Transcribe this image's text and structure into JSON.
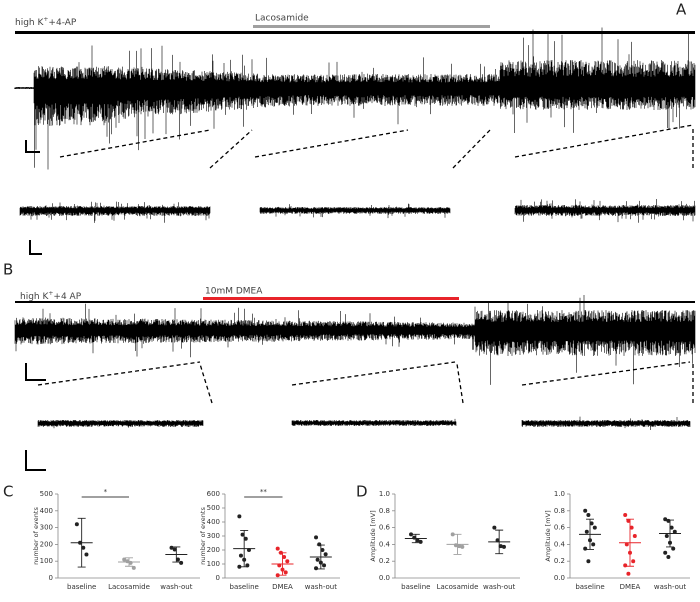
{
  "panels": [
    "A",
    "B",
    "C",
    "D"
  ],
  "traces": [
    {
      "condition": {
        "prefix": "high K",
        "sup": "+",
        "suffix": "+4-AP"
      },
      "drug": "Lacosamide",
      "drug_color": "#a0a0a0"
    },
    {
      "condition": {
        "prefix": "high K",
        "sup": "+",
        "suffix": "+4 AP"
      },
      "drug": "10mM DMEA",
      "drug_color": "#e8242a"
    }
  ],
  "chart_data": [
    {
      "type": "dotplot",
      "ylabel": "number of events",
      "categories": [
        "baseline",
        "Lacosamide",
        "wash-out"
      ],
      "colors": [
        "#222222",
        "#a0a0a0",
        "#222222"
      ],
      "points": [
        [
          320,
          210,
          180,
          140
        ],
        [
          110,
          100,
          90,
          60
        ],
        [
          180,
          170,
          110,
          90
        ]
      ],
      "means": [
        210,
        95,
        140
      ],
      "errors": [
        145,
        25,
        45
      ],
      "ylim": [
        0,
        500
      ],
      "yticks": [
        0,
        100,
        200,
        300,
        400,
        500
      ],
      "significance": "*"
    },
    {
      "type": "dotplot",
      "ylabel": "number of events",
      "categories": [
        "baseline",
        "DMEA",
        "wash-out"
      ],
      "colors": [
        "#222222",
        "#e8242a",
        "#222222"
      ],
      "points": [
        [
          440,
          310,
          280,
          200,
          160,
          130,
          90,
          80
        ],
        [
          210,
          180,
          150,
          120,
          90,
          60,
          40,
          20
        ],
        [
          290,
          240,
          200,
          170,
          130,
          110,
          90,
          70
        ]
      ],
      "means": [
        210,
        100,
        150
      ],
      "errors": [
        130,
        80,
        85
      ],
      "ylim": [
        0,
        600
      ],
      "yticks": [
        0,
        100,
        200,
        300,
        400,
        500,
        600
      ],
      "significance": "**"
    },
    {
      "type": "dotplot",
      "ylabel": "Amplitude [mV]",
      "categories": [
        "baseline",
        "Lacosamide",
        "wash-out"
      ],
      "colors": [
        "#222222",
        "#a0a0a0",
        "#222222"
      ],
      "points": [
        [
          0.52,
          0.48,
          0.45,
          0.43
        ],
        [
          0.52,
          0.39,
          0.38,
          0.37
        ],
        [
          0.6,
          0.45,
          0.38,
          0.37
        ]
      ],
      "means": [
        0.47,
        0.4,
        0.43
      ],
      "errors": [
        0.05,
        0.12,
        0.14
      ],
      "ylim": [
        0,
        1
      ],
      "yticks": [
        {
          "value": 0,
          "label": "0.0"
        },
        0.2,
        0.4,
        0.6,
        0.8,
        {
          "value": 1,
          "label": "1.0"
        }
      ]
    },
    {
      "type": "dotplot",
      "ylabel": "Amplitude [mV]",
      "categories": [
        "baseline",
        "DMEA",
        "wash-out"
      ],
      "colors": [
        "#222222",
        "#e8242a",
        "#222222"
      ],
      "points": [
        [
          0.8,
          0.75,
          0.65,
          0.6,
          0.55,
          0.45,
          0.4,
          0.35,
          0.2
        ],
        [
          0.75,
          0.68,
          0.6,
          0.5,
          0.4,
          0.3,
          0.2,
          0.15,
          0.05
        ],
        [
          0.7,
          0.68,
          0.6,
          0.55,
          0.5,
          0.42,
          0.35,
          0.3,
          0.25
        ]
      ],
      "means": [
        0.52,
        0.42,
        0.53
      ],
      "errors": [
        0.18,
        0.28,
        0.16
      ],
      "ylim": [
        0,
        1
      ],
      "yticks": [
        {
          "value": 0,
          "label": "0.0"
        },
        0.2,
        0.4,
        0.6,
        0.8,
        {
          "value": 1,
          "label": "1.0"
        }
      ]
    }
  ]
}
